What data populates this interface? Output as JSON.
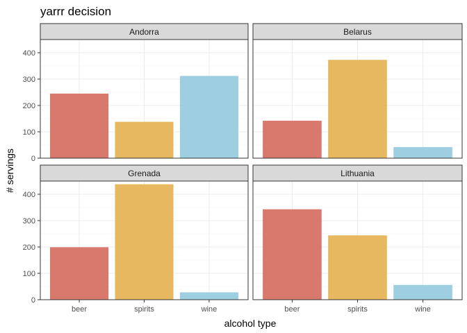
{
  "chart_data": {
    "type": "bar",
    "title": "yarrr decision",
    "xlabel": "alcohol type",
    "ylabel": "# servings",
    "categories": [
      "beer",
      "spirits",
      "wine"
    ],
    "ylim": [
      0,
      450
    ],
    "yticks": [
      0,
      100,
      200,
      300,
      400
    ],
    "grid": true,
    "legend": "none",
    "colors": {
      "beer": "#d9796d",
      "spirits": "#e8b861",
      "wine": "#9ecfe0"
    },
    "facets": [
      {
        "name": "Andorra",
        "values": [
          245,
          138,
          312
        ]
      },
      {
        "name": "Belarus",
        "values": [
          142,
          373,
          42
        ]
      },
      {
        "name": "Grenada",
        "values": [
          199,
          438,
          28
        ]
      },
      {
        "name": "Lithuania",
        "values": [
          343,
          244,
          56
        ]
      }
    ]
  }
}
